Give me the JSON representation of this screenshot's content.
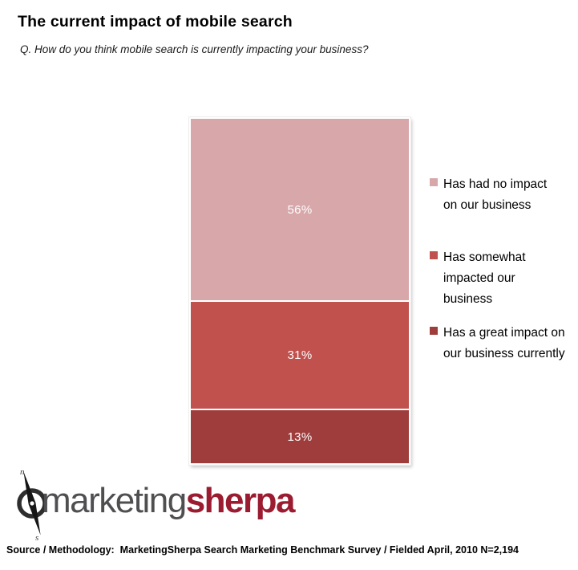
{
  "chart_data": {
    "type": "bar",
    "stacked": true,
    "orientation": "vertical",
    "title": "The current impact of mobile search",
    "subtitle": "Q. How do you think mobile search is currently impacting your business?",
    "categories": [
      ""
    ],
    "series": [
      {
        "name": "Has had no impact on our business",
        "value": 56,
        "label": "56%",
        "color": "#d8a7aa"
      },
      {
        "name": "Has somewhat impacted our business",
        "value": 31,
        "label": "31%",
        "color": "#c1514d"
      },
      {
        "name": "Has a great impact on our business currently",
        "value": 13,
        "label": "13%",
        "color": "#9e3d3b"
      }
    ],
    "ylim": [
      0,
      100
    ],
    "grid": false,
    "axes_visible": false,
    "legend_position": "right",
    "value_label_color": "#ffffff"
  },
  "logo": {
    "name": "MarketingSherpa",
    "part1": "marketing",
    "part2": "sherpa",
    "part1_color": "#4f4f51",
    "part2_color": "#9b1b30",
    "compass_icon": "compass-needle",
    "compass_letter_top": "n",
    "compass_letter_bottom": "s"
  },
  "footer": {
    "source": "Source / Methodology:  MarketingSherpa Search Marketing Benchmark Survey / Fielded April, 2010 N=2,194"
  }
}
